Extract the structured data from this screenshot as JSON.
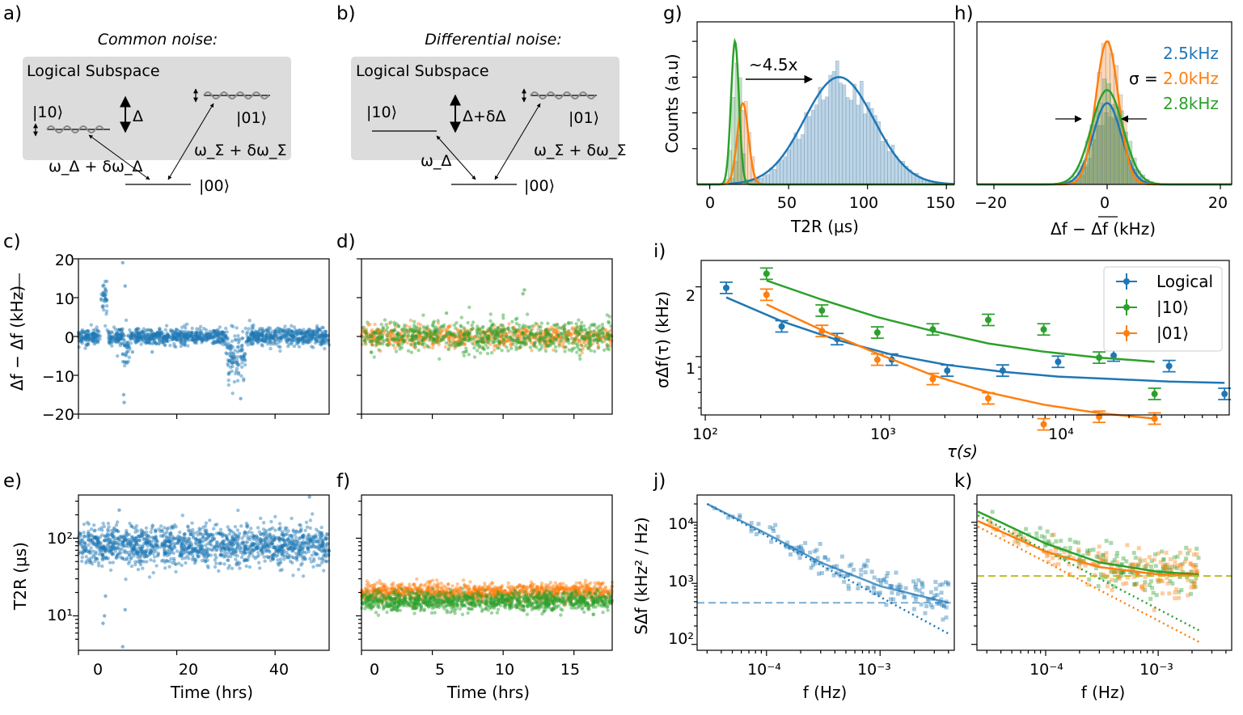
{
  "colors": {
    "blue": "#1f77b4",
    "orange": "#ff7f0e",
    "green": "#2ca02c",
    "gray": "#dddddd",
    "olive": "#bcbd22"
  },
  "panels": {
    "a": {
      "label": "a)",
      "title": "Common noise:",
      "subspace": "Logical Subspace",
      "s10": "|10⟩",
      "s01": "|01⟩",
      "s00": "|00⟩",
      "delta": "Δ",
      "omega_d": "ω_Δ + δω_Δ",
      "omega_s": "ω_Σ + δω_Σ"
    },
    "b": {
      "label": "b)",
      "title": "Differential noise:",
      "subspace": "Logical Subspace",
      "s10": "|10⟩",
      "s01": "|01⟩",
      "s00": "|00⟩",
      "delta": "Δ+δΔ",
      "omega_d": "ω_Δ",
      "omega_s": "ω_Σ + δω_Σ"
    },
    "c": {
      "label": "c)",
      "ylabel": "Δf − Δf (kHz)",
      "yticks": [
        "20",
        "10",
        "0",
        "−10",
        "−20"
      ]
    },
    "d": {
      "label": "d)"
    },
    "e": {
      "label": "e)",
      "ylabel": "T2R (μs)",
      "yticks": [
        "10²",
        "10¹"
      ],
      "xlabel": "Time (hrs)",
      "xticks": [
        "0",
        "20",
        "40"
      ]
    },
    "f": {
      "label": "f)",
      "xlabel": "Time (hrs)",
      "xticks": [
        "0",
        "5",
        "10",
        "15"
      ]
    },
    "g": {
      "label": "g)",
      "ylabel": "Counts (a.u)",
      "xlabel": "T2R (μs)",
      "xticks": [
        "0",
        "50",
        "100",
        "150"
      ],
      "annotation": "~4.5x"
    },
    "h": {
      "label": "h)",
      "xlabel": "Δf − Δf (kHz)",
      "xticks": [
        "−20",
        "0",
        "20"
      ],
      "sigma_prefix": "σ =",
      "sigma_blue": "2.5kHz",
      "sigma_orange": "2.0kHz",
      "sigma_green": "2.8kHz"
    },
    "i": {
      "label": "i)",
      "ylabel": "σΔf(τ) (kHz)",
      "xlabel": "τ(s)",
      "yticks": [
        "2",
        "1"
      ],
      "xticks": [
        "10²",
        "10³",
        "10⁴"
      ],
      "legend": [
        "Logical",
        "|10⟩",
        "|01⟩"
      ]
    },
    "j": {
      "label": "j)",
      "ylabel": "SΔf (kHz² / Hz)",
      "xlabel": "f (Hz)",
      "yticks": [
        "10⁴",
        "10³",
        "10²"
      ],
      "xticks": [
        "10⁻⁴",
        "10⁻³"
      ]
    },
    "k": {
      "label": "k)",
      "xlabel": "f (Hz)",
      "xticks": [
        "10⁻⁴",
        "10⁻³"
      ]
    }
  },
  "chart_data": [
    {
      "panel": "c",
      "type": "scatter",
      "xlabel": "",
      "ylabel": "Δf − Δf (kHz)",
      "xlim": [
        0,
        51
      ],
      "ylim": [
        -20,
        20
      ],
      "series": [
        {
          "color": "blue",
          "segments": [
            [
              0,
              4.5,
              0,
              1.0
            ],
            [
              4.6,
              5.8,
              10,
              1.8
            ],
            [
              5.8,
              9,
              0,
              1.2
            ],
            [
              9,
              10.5,
              -2,
              3
            ],
            [
              10.5,
              30,
              0,
              1.0
            ],
            [
              30,
              34,
              -5,
              2.5
            ],
            [
              34,
              51,
              0,
              1.2
            ]
          ],
          "outliers": [
            [
              5,
              13
            ],
            [
              5.5,
              12
            ],
            [
              9,
              19
            ],
            [
              9.2,
              -15
            ],
            [
              9.3,
              -17
            ],
            [
              9.5,
              13
            ],
            [
              33,
              -16
            ],
            [
              15,
              -4
            ],
            [
              11,
              -4
            ]
          ]
        }
      ]
    },
    {
      "panel": "d",
      "type": "scatter",
      "xlim": [
        0,
        17.7
      ],
      "ylim": [
        -20,
        20
      ],
      "series": [
        {
          "color": "orange",
          "segments": [
            [
              0,
              17.7,
              0,
              1.3
            ]
          ],
          "outliers": []
        },
        {
          "color": "green",
          "segments": [
            [
              0,
              17.7,
              0,
              2.0
            ]
          ],
          "outliers": [
            [
              11.4,
              11
            ],
            [
              11.5,
              12
            ],
            [
              6,
              6
            ]
          ]
        }
      ]
    },
    {
      "panel": "e",
      "type": "scatter",
      "log_y": true,
      "xlim": [
        0,
        51
      ],
      "ylim": [
        3.6,
        360
      ],
      "series": [
        {
          "color": "blue",
          "center": 80,
          "spread": 0.28,
          "xrange": [
            0,
            51
          ],
          "outliers": [
            [
              5,
              8
            ],
            [
              5.3,
              10
            ],
            [
              9,
              4
            ],
            [
              9.5,
              12
            ],
            [
              5.5,
              18
            ],
            [
              8.3,
              230
            ],
            [
              47,
              340
            ]
          ]
        }
      ]
    },
    {
      "panel": "f",
      "type": "scatter",
      "log_y": true,
      "xlim": [
        0,
        17.7
      ],
      "ylim": [
        3.6,
        360
      ],
      "series": [
        {
          "color": "orange",
          "center": 20,
          "spread": 0.13,
          "xrange": [
            0,
            17.7
          ]
        },
        {
          "color": "green",
          "center": 15.5,
          "spread": 0.13,
          "xrange": [
            0,
            17.7
          ]
        }
      ]
    },
    {
      "panel": "g",
      "type": "histogram",
      "xlabel": "T2R (μs)",
      "ylabel": "Counts (a.u)",
      "xlim": [
        -8,
        155
      ],
      "series": [
        {
          "color": "blue",
          "mean": 82,
          "sd": 22,
          "peak": 0.66
        },
        {
          "color": "orange",
          "mean": 21,
          "sd": 3.5,
          "peak": 0.5
        },
        {
          "color": "green",
          "mean": 16,
          "sd": 2.5,
          "peak": 0.88
        }
      ]
    },
    {
      "panel": "h",
      "type": "histogram",
      "xlabel": "Δf − Δf (kHz)",
      "xlim": [
        -23,
        22
      ],
      "series": [
        {
          "color": "blue",
          "mean": 0,
          "sd": 2.5,
          "peak": 0.5
        },
        {
          "color": "orange",
          "mean": 0,
          "sd": 2.0,
          "peak": 0.88
        },
        {
          "color": "green",
          "mean": 0,
          "sd": 2.8,
          "peak": 0.58
        }
      ]
    },
    {
      "panel": "i",
      "type": "line",
      "log_x": true,
      "log_y": true,
      "xlabel": "τ(s)",
      "ylabel": "σΔf(τ) (kHz)",
      "xlim": [
        95,
        70000
      ],
      "ylim": [
        0.56,
        2.6
      ],
      "series": [
        {
          "name": "Logical",
          "color": "blue",
          "points": [
            [
              130,
              1.98
            ],
            [
              260,
              1.35
            ],
            [
              520,
              1.19
            ],
            [
              1030,
              0.97
            ],
            [
              2060,
              0.87
            ],
            [
              4120,
              0.87
            ],
            [
              8240,
              0.95
            ],
            [
              16500,
              1.01
            ],
            [
              33000,
              0.91
            ],
            [
              66000,
              0.69
            ]
          ],
          "fit": [
            [
              130,
              1.8
            ],
            [
              260,
              1.42
            ],
            [
              520,
              1.18
            ],
            [
              1030,
              1.02
            ],
            [
              2060,
              0.92
            ],
            [
              4120,
              0.86
            ],
            [
              8240,
              0.82
            ],
            [
              16500,
              0.8
            ],
            [
              33000,
              0.78
            ],
            [
              66000,
              0.77
            ]
          ]
        },
        {
          "name": "|10⟩",
          "color": "green",
          "points": [
            [
              215,
              2.28
            ],
            [
              430,
              1.58
            ],
            [
              860,
              1.27
            ],
            [
              1720,
              1.31
            ],
            [
              3440,
              1.44
            ],
            [
              6880,
              1.31
            ],
            [
              13760,
              0.99
            ],
            [
              27520,
              0.69
            ]
          ],
          "fit": [
            [
              215,
              2.13
            ],
            [
              430,
              1.76
            ],
            [
              860,
              1.48
            ],
            [
              1720,
              1.29
            ],
            [
              3440,
              1.14
            ],
            [
              6880,
              1.05
            ],
            [
              13760,
              0.99
            ],
            [
              27520,
              0.95
            ]
          ]
        },
        {
          "name": "|01⟩",
          "color": "orange",
          "points": [
            [
              215,
              1.85
            ],
            [
              430,
              1.29
            ],
            [
              860,
              0.97
            ],
            [
              1720,
              0.8
            ],
            [
              3440,
              0.66
            ],
            [
              6880,
              0.51
            ],
            [
              13760,
              0.55
            ],
            [
              27520,
              0.54
            ]
          ],
          "fit": [
            [
              215,
              1.68
            ],
            [
              430,
              1.3
            ],
            [
              860,
              1.03
            ],
            [
              1720,
              0.83
            ],
            [
              3440,
              0.7
            ],
            [
              6880,
              0.62
            ],
            [
              13760,
              0.57
            ],
            [
              27520,
              0.54
            ]
          ]
        }
      ]
    },
    {
      "panel": "j",
      "type": "scatter",
      "log_x": true,
      "log_y": true,
      "xlabel": "f (Hz)",
      "ylabel": "SΔf (kHz² / Hz)",
      "xlim": [
        2.45e-05,
        0.0045
      ],
      "ylim": [
        80,
        28000
      ],
      "series": [
        {
          "color": "blue",
          "white_level": 480,
          "fit_points": [
            [
              3e-05,
              20000
            ],
            [
              0.0001,
              6500
            ],
            [
              0.0003,
              2200
            ],
            [
              0.001,
              900
            ],
            [
              0.004,
              480
            ]
          ],
          "dotted": [
            [
              3e-05,
              20000
            ],
            [
              0.004,
              150
            ]
          ]
        }
      ]
    },
    {
      "panel": "k",
      "type": "scatter",
      "log_x": true,
      "log_y": true,
      "xlabel": "f (Hz)",
      "xlim": [
        2.45e-05,
        0.0045
      ],
      "ylim": [
        80,
        28000
      ],
      "series": [
        {
          "color": "green",
          "white_level": 1320,
          "fit_points": [
            [
              2.5e-05,
              15000
            ],
            [
              0.0001,
              4500
            ],
            [
              0.0003,
              2200
            ],
            [
              0.001,
              1550
            ],
            [
              0.0023,
              1400
            ]
          ],
          "dotted": [
            [
              2.5e-05,
              13000
            ],
            [
              0.0023,
              170
            ]
          ]
        },
        {
          "color": "orange",
          "white_level": 1320,
          "fit_points": [
            [
              2.5e-05,
              10500
            ],
            [
              0.0001,
              3300
            ],
            [
              0.0003,
              1850
            ],
            [
              0.001,
              1400
            ],
            [
              0.0023,
              1330
            ]
          ],
          "dotted": [
            [
              2.5e-05,
              8500
            ],
            [
              0.0023,
              110
            ]
          ]
        }
      ]
    }
  ]
}
